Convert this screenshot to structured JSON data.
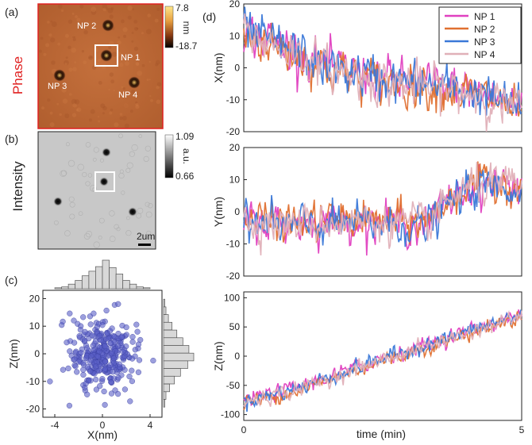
{
  "chart_data": [
    {
      "panel": "(a)",
      "type": "heatmap",
      "side_label": "Phase",
      "colorbar": {
        "max": "7.8",
        "min": "-18.7",
        "unit": "nm"
      },
      "particles": [
        "NP 2",
        "NP 1",
        "NP 3",
        "NP 4"
      ]
    },
    {
      "panel": "(b)",
      "type": "heatmap",
      "side_label": "Intensity",
      "colorbar": {
        "max": "1.09",
        "min": "0.66",
        "unit": "a.u."
      },
      "scalebar": "2um"
    },
    {
      "panel": "(c)",
      "type": "scatter",
      "xlabel": "X(nm)",
      "ylabel": "Z(nm)",
      "xlim": [
        -5,
        5
      ],
      "ylim": [
        -23,
        23
      ],
      "xticks": [
        "-4",
        "0",
        "4"
      ],
      "yticks": [
        "20",
        "10",
        "0",
        "-10",
        "-20"
      ],
      "n_points": 320,
      "sigma_x": 1.3,
      "sigma_z": 6.5,
      "color": "#5a5fc6",
      "hist_x": [
        1,
        2,
        5,
        9,
        14,
        19,
        24,
        31,
        23,
        16,
        9,
        5,
        2,
        1
      ],
      "hist_z": [
        1,
        2,
        4,
        7,
        11,
        16,
        21,
        25,
        20,
        14,
        9,
        5,
        2,
        1
      ]
    },
    {
      "panel": "(d)",
      "type": "line",
      "xlabel": "time (min)",
      "xlim": [
        0,
        5
      ],
      "xticks": [
        "0",
        "5"
      ],
      "series": [
        {
          "name": "NP 1",
          "color": "#e040c0"
        },
        {
          "name": "NP 2",
          "color": "#e07030"
        },
        {
          "name": "NP 3",
          "color": "#3a78d8"
        },
        {
          "name": "NP 4",
          "color": "#e0b0b8"
        }
      ],
      "subplots": [
        {
          "ylabel": "X(nm)",
          "ylim": [
            -20,
            20
          ],
          "yticks": [
            "20",
            "10",
            "0",
            "-10",
            "-20"
          ],
          "trend_t": [
            0,
            0.8,
            1.5,
            2.5,
            3.5,
            4.2,
            5.0
          ],
          "trend_v": [
            11,
            6,
            0,
            -4,
            -6,
            -8,
            -13
          ],
          "noise": 3.2
        },
        {
          "ylabel": "Y(nm)",
          "ylim": [
            -20,
            20
          ],
          "yticks": [
            "20",
            "10",
            "0",
            "-10",
            "-20"
          ],
          "trend_t": [
            0,
            1.0,
            2.0,
            3.3,
            3.8,
            4.2,
            5.0
          ],
          "trend_v": [
            -3,
            -4,
            -3,
            -4,
            5,
            8,
            8
          ],
          "noise": 2.8
        },
        {
          "ylabel": "Z(nm)",
          "ylim": [
            -110,
            110
          ],
          "yticks": [
            "100",
            "50",
            "0",
            "-50",
            "-100"
          ],
          "trend_t": [
            0,
            1.0,
            2.5,
            4.0,
            5.0
          ],
          "trend_v": [
            -78,
            -55,
            -5,
            40,
            70
          ],
          "noise": 6
        }
      ]
    }
  ]
}
